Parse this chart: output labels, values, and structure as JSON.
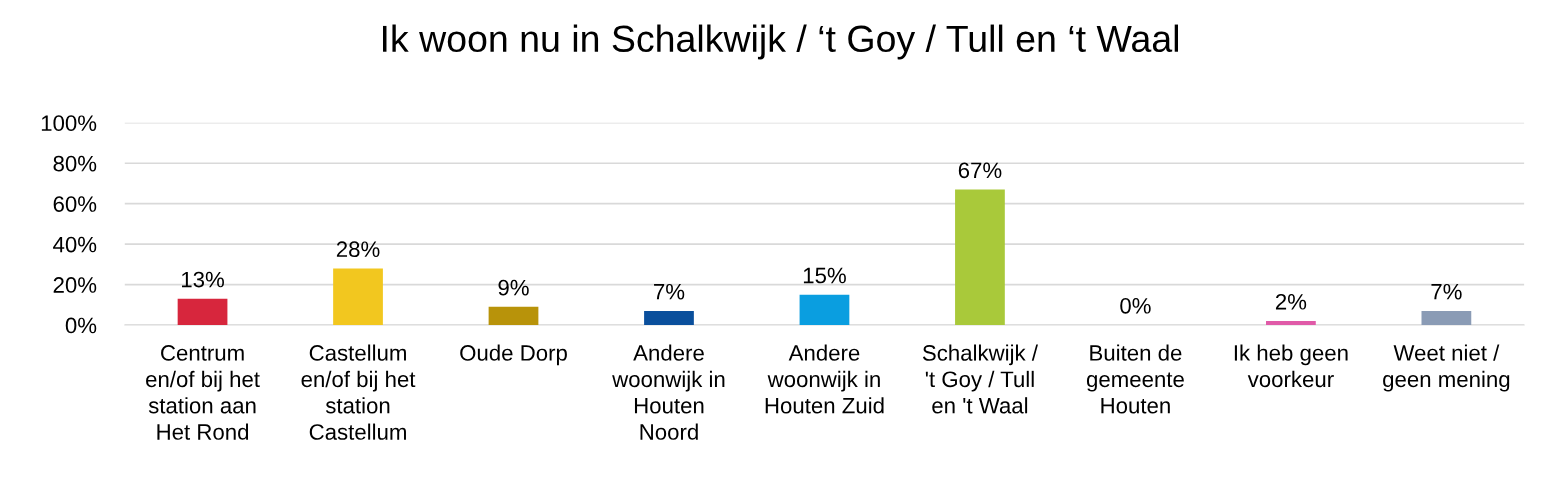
{
  "chart_data": {
    "type": "bar",
    "title": "Ik woon nu in Schalkwijk / ‘t Goy / Tull en ‘t Waal",
    "categories": [
      "Centrum\nen/of bij het\nstation aan\nHet Rond",
      "Castellum\nen/of bij het\nstation\nCastellum",
      "Oude Dorp",
      "Andere\nwoonwijk in\nHouten\nNoord",
      "Andere\nwoonwijk in\nHouten Zuid",
      "Schalkwijk /\n't Goy / Tull\nen 't Waal",
      "Buiten de\ngemeente\nHouten",
      "Ik heb geen\nvoorkeur",
      "Weet niet /\ngeen mening"
    ],
    "values": [
      13,
      28,
      9,
      7,
      15,
      67,
      0,
      2,
      7
    ],
    "value_labels": [
      "13%",
      "28%",
      "9%",
      "7%",
      "15%",
      "67%",
      "0%",
      "2%",
      "7%"
    ],
    "colors": [
      "#d7263d",
      "#f2c71f",
      "#b8930a",
      "#0a4f9c",
      "#0a9ee0",
      "#a9c93a",
      "#8e6bb0",
      "#e05aa8",
      "#8a9bb5"
    ],
    "ylim": [
      0,
      100
    ],
    "yticks": [
      {
        "value": 0,
        "label": "0%"
      },
      {
        "value": 20,
        "label": "20%"
      },
      {
        "value": 40,
        "label": "40%"
      },
      {
        "value": 60,
        "label": "60%"
      },
      {
        "value": 80,
        "label": "80%"
      },
      {
        "value": 100,
        "label": "100%"
      }
    ],
    "grid": "y",
    "legend": false
  }
}
